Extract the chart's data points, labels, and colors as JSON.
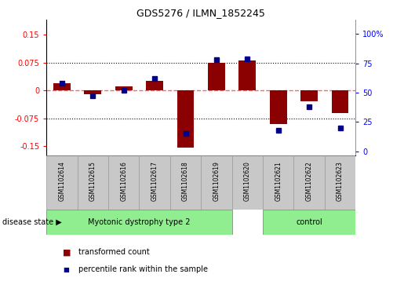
{
  "title": "GDS5276 / ILMN_1852245",
  "samples": [
    "GSM1102614",
    "GSM1102615",
    "GSM1102616",
    "GSM1102617",
    "GSM1102618",
    "GSM1102619",
    "GSM1102620",
    "GSM1102621",
    "GSM1102622",
    "GSM1102623"
  ],
  "transformed_count": [
    0.02,
    -0.01,
    0.01,
    0.025,
    -0.155,
    0.075,
    0.08,
    -0.09,
    -0.03,
    -0.06
  ],
  "percentile_rank": [
    58,
    47,
    52,
    62,
    15,
    78,
    79,
    18,
    38,
    20
  ],
  "bar_color": "#8B0000",
  "dot_color": "#00008B",
  "ylim_left": [
    -0.175,
    0.19
  ],
  "ylim_right": [
    -3.5,
    112
  ],
  "yticks_left": [
    -0.15,
    -0.075,
    0,
    0.075,
    0.15
  ],
  "yticks_right": [
    0,
    25,
    50,
    75,
    100
  ],
  "ytick_labels_left": [
    "-0.15",
    "-0.075",
    "0",
    "0.075",
    "0.15"
  ],
  "ytick_labels_right": [
    "0",
    "25",
    "50",
    "75",
    "100%"
  ],
  "hlines": [
    0.075,
    -0.075
  ],
  "zero_line_color": "#FF6666",
  "group_labels": [
    "Myotonic dystrophy type 2",
    "control"
  ],
  "group_colors": [
    "#90EE90",
    "#90EE90"
  ],
  "disease_state_label": "disease state",
  "legend_bar_label": "transformed count",
  "legend_dot_label": "percentile rank within the sample",
  "bar_width": 0.55,
  "xlabels_facecolor": "#C8C8C8",
  "xlabels_edgecolor": "#999999"
}
